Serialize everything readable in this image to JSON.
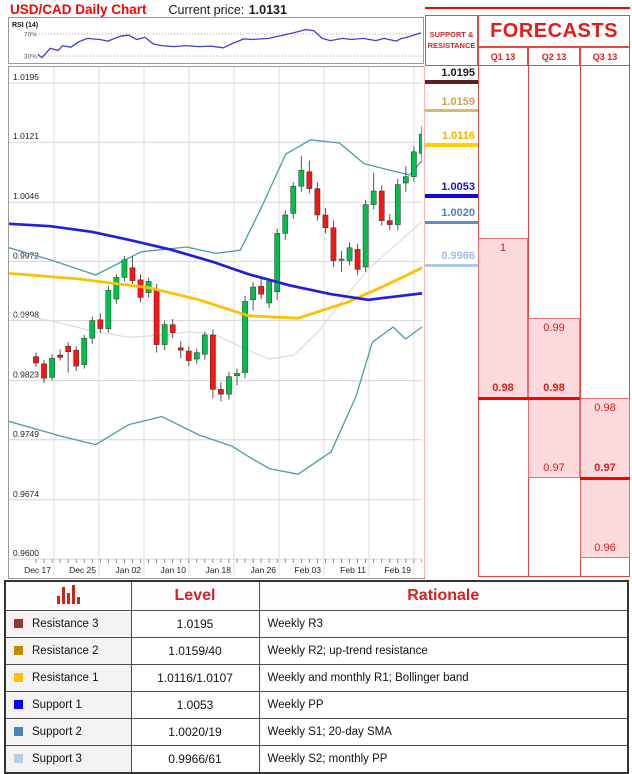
{
  "header": {
    "title": "USD/CAD Daily Chart",
    "current_price_label": "Current price:",
    "current_price_value": "1.0131"
  },
  "rsi": {
    "label": "RSI (14)",
    "upper_label": "70%",
    "lower_label": "30%"
  },
  "support_resistance": {
    "header": "SUPPORT & RESISTANCE",
    "levels": [
      {
        "value": "1.0195",
        "price": 1.0195,
        "text_color": "#1a1a1a",
        "line_color": "#5a2028",
        "line_h": 4
      },
      {
        "value": "1.0159",
        "price": 1.0159,
        "text_color": "#c9a55a",
        "line_color": "#d6ba74",
        "line_h": 3
      },
      {
        "value": "1.0116",
        "price": 1.0116,
        "text_color": "#f0b400",
        "line_color": "#ffd100",
        "line_h": 4
      },
      {
        "value": "1.0053",
        "price": 1.0053,
        "text_color": "#1414cc",
        "line_color": "#0d0dd6",
        "line_h": 4
      },
      {
        "value": "1.0020",
        "price": 1.002,
        "text_color": "#4f81bd",
        "line_color": "#5b8fc9",
        "line_h": 3
      },
      {
        "value": "0.9966",
        "price": 0.9966,
        "text_color": "#a3c0dd",
        "line_color": "#afc9e3",
        "line_h": 3
      }
    ]
  },
  "forecasts": {
    "title": "FORECASTS",
    "columns": [
      {
        "label": "Q1 13",
        "range": {
          "high": 1.0,
          "low": 0.98
        },
        "point": 0.98,
        "annotations": [
          {
            "text": "1",
            "price": 1.0,
            "below": true,
            "bold": false
          },
          {
            "text": "0.98",
            "price": 0.98,
            "below": false,
            "bold": true
          }
        ]
      },
      {
        "label": "Q2 13",
        "range": {
          "high": 0.99,
          "low": 0.97
        },
        "point": 0.98,
        "annotations": [
          {
            "text": "0.99",
            "price": 0.99,
            "below": true,
            "bold": false
          },
          {
            "text": "0.98",
            "price": 0.98,
            "below": false,
            "bold": true
          },
          {
            "text": "0.97",
            "price": 0.97,
            "below": false,
            "bold": false
          }
        ]
      },
      {
        "label": "Q3 13",
        "range": {
          "high": 0.98,
          "low": 0.96
        },
        "point": 0.97,
        "annotations": [
          {
            "text": "0.98",
            "price": 0.98,
            "below": true,
            "bold": false
          },
          {
            "text": "0.97",
            "price": 0.97,
            "below": false,
            "bold": true
          },
          {
            "text": "0.96",
            "price": 0.96,
            "below": false,
            "bold": false
          }
        ]
      }
    ]
  },
  "chart_data": {
    "type": "candlestick",
    "title": "USD/CAD Daily Chart",
    "current_price": 1.0131,
    "ylim": [
      0.9585,
      1.0215
    ],
    "grid": true,
    "y_ticks": [
      "1.0195",
      "1.0121",
      "1.0046",
      "0.9972",
      "0.9898",
      "0.9823",
      "0.9749",
      "0.9674",
      "0.9600"
    ],
    "x_ticks": [
      "Dec 17",
      "Dec 25",
      "Jan 02",
      "Jan 10",
      "Jan 18",
      "Jan 26",
      "Feb 03",
      "Feb 11",
      "Feb 19"
    ],
    "up_color": "#00bf4a",
    "down_color": "#fb1414",
    "candles_ohlc": [
      [
        0.9853,
        0.9858,
        0.984,
        0.9845
      ],
      [
        0.9844,
        0.9849,
        0.982,
        0.9826
      ],
      [
        0.9827,
        0.9856,
        0.9823,
        0.9851
      ],
      [
        0.9855,
        0.9862,
        0.9848,
        0.9852
      ],
      [
        0.9866,
        0.9871,
        0.9833,
        0.9859
      ],
      [
        0.9861,
        0.9866,
        0.9835,
        0.9841
      ],
      [
        0.9843,
        0.988,
        0.9838,
        0.9876
      ],
      [
        0.9876,
        0.9903,
        0.9869,
        0.9898
      ],
      [
        0.9899,
        0.9907,
        0.9883,
        0.9888
      ],
      [
        0.9888,
        0.9941,
        0.9883,
        0.9936
      ],
      [
        0.9925,
        0.9956,
        0.9919,
        0.9952
      ],
      [
        0.9952,
        0.9979,
        0.9947,
        0.9974
      ],
      [
        0.9964,
        0.9978,
        0.9944,
        0.9948
      ],
      [
        0.9949,
        0.9956,
        0.9921,
        0.9927
      ],
      [
        0.9933,
        0.9951,
        0.9927,
        0.9947
      ],
      [
        0.9937,
        0.9944,
        0.9858,
        0.9868
      ],
      [
        0.9868,
        0.9898,
        0.9861,
        0.9893
      ],
      [
        0.9893,
        0.99,
        0.9876,
        0.9883
      ],
      [
        0.9864,
        0.9872,
        0.9851,
        0.9861
      ],
      [
        0.986,
        0.9866,
        0.9841,
        0.9848
      ],
      [
        0.985,
        0.9863,
        0.9844,
        0.9858
      ],
      [
        0.9856,
        0.9884,
        0.9849,
        0.988
      ],
      [
        0.988,
        0.9887,
        0.9801,
        0.9812
      ],
      [
        0.9812,
        0.9821,
        0.9797,
        0.9806
      ],
      [
        0.9806,
        0.9834,
        0.9799,
        0.9828
      ],
      [
        0.9829,
        0.9838,
        0.9817,
        0.9832
      ],
      [
        0.9833,
        0.9929,
        0.9826,
        0.9922
      ],
      [
        0.9924,
        0.9946,
        0.9911,
        0.994
      ],
      [
        0.9941,
        0.9951,
        0.9925,
        0.9931
      ],
      [
        0.992,
        0.9951,
        0.9914,
        0.9947
      ],
      [
        0.9934,
        1.0013,
        0.9924,
        1.0007
      ],
      [
        1.0007,
        1.0036,
        0.9999,
        1.003
      ],
      [
        1.0032,
        1.0071,
        1.0025,
        1.0066
      ],
      [
        1.0066,
        1.0104,
        1.0059,
        1.0086
      ],
      [
        1.0084,
        1.0098,
        1.0057,
        1.0063
      ],
      [
        1.0063,
        1.0071,
        1.0023,
        1.003
      ],
      [
        1.003,
        1.0039,
        1.0007,
        1.0014
      ],
      [
        1.0014,
        1.0023,
        0.9965,
        0.9973
      ],
      [
        0.9974,
        0.9985,
        0.9959,
        0.9975
      ],
      [
        0.9973,
        0.9996,
        0.9967,
        0.9989
      ],
      [
        0.9987,
        0.9994,
        0.9955,
        0.9962
      ],
      [
        0.9965,
        1.0049,
        0.9959,
        1.0043
      ],
      [
        1.0043,
        1.0083,
        1.0037,
        1.006
      ],
      [
        1.006,
        1.0067,
        1.0017,
        1.0023
      ],
      [
        1.0023,
        1.0031,
        1.0011,
        1.0018
      ],
      [
        1.0018,
        1.0075,
        1.0011,
        1.0068
      ],
      [
        1.007,
        1.0091,
        1.0059,
        1.0078
      ],
      [
        1.0078,
        1.0116,
        1.0071,
        1.0109
      ],
      [
        1.0107,
        1.0141,
        1.0099,
        1.0131
      ]
    ],
    "overlays": {
      "sma_20": {
        "color": "#dcdcdc",
        "width": 1.2,
        "points": [
          [
            0,
            0.9908
          ],
          [
            0.1,
            0.9898
          ],
          [
            0.2,
            0.9885
          ],
          [
            0.29,
            0.9877
          ],
          [
            0.37,
            0.988
          ],
          [
            0.44,
            0.9884
          ],
          [
            0.5,
            0.988
          ],
          [
            0.57,
            0.9863
          ],
          [
            0.63,
            0.985
          ],
          [
            0.69,
            0.9855
          ],
          [
            0.75,
            0.9885
          ],
          [
            0.81,
            0.9925
          ],
          [
            0.87,
            0.9962
          ],
          [
            0.93,
            0.999
          ],
          [
            1,
            1.0022
          ]
        ]
      },
      "bollinger_upper": {
        "color": "#4d9ba8",
        "width": 1.3,
        "points": [
          [
            0,
            0.9989
          ],
          [
            0.1,
            0.9974
          ],
          [
            0.21,
            0.9955
          ],
          [
            0.32,
            0.9984
          ],
          [
            0.43,
            0.999
          ],
          [
            0.5,
            0.9982
          ],
          [
            0.56,
            0.9986
          ],
          [
            0.61,
            1.0038
          ],
          [
            0.67,
            1.0106
          ],
          [
            0.73,
            1.0124
          ],
          [
            0.8,
            1.012
          ],
          [
            0.86,
            1.0094
          ],
          [
            0.93,
            1.0085
          ],
          [
            0.97,
            1.008
          ],
          [
            1,
            1.0098
          ]
        ]
      },
      "bollinger_lower": {
        "color": "#4d9ba8",
        "width": 1.3,
        "points": [
          [
            0,
            0.9772
          ],
          [
            0.13,
            0.9753
          ],
          [
            0.21,
            0.9743
          ],
          [
            0.29,
            0.9768
          ],
          [
            0.37,
            0.9778
          ],
          [
            0.46,
            0.9755
          ],
          [
            0.54,
            0.9741
          ],
          [
            0.58,
            0.9728
          ],
          [
            0.63,
            0.9713
          ],
          [
            0.7,
            0.9706
          ],
          [
            0.78,
            0.9734
          ],
          [
            0.84,
            0.9803
          ],
          [
            0.88,
            0.9871
          ],
          [
            0.93,
            0.989
          ],
          [
            0.96,
            0.9875
          ],
          [
            1,
            0.989
          ]
        ]
      },
      "ma_yellow": {
        "color": "#ffc000",
        "width": 2.8,
        "points": [
          [
            0,
            0.9957
          ],
          [
            0.17,
            0.995
          ],
          [
            0.34,
            0.9939
          ],
          [
            0.46,
            0.9924
          ],
          [
            0.58,
            0.9904
          ],
          [
            0.7,
            0.9901
          ],
          [
            0.82,
            0.9921
          ],
          [
            0.92,
            0.9944
          ],
          [
            1,
            0.9964
          ]
        ]
      },
      "ma_blue": {
        "color": "#2020dd",
        "width": 2.7,
        "points": [
          [
            0,
            1.0019
          ],
          [
            0.1,
            1.0016
          ],
          [
            0.2,
            1.0009
          ],
          [
            0.29,
            0.9999
          ],
          [
            0.39,
            0.9987
          ],
          [
            0.49,
            0.9972
          ],
          [
            0.58,
            0.9956
          ],
          [
            0.68,
            0.9942
          ],
          [
            0.78,
            0.9931
          ],
          [
            0.87,
            0.9924
          ],
          [
            0.95,
            0.9929
          ],
          [
            1,
            0.9932
          ]
        ]
      }
    },
    "rsi": {
      "label": "RSI (14)",
      "upper_line": 70,
      "lower_line": 30,
      "color": "#4040d0",
      "points": [
        [
          0.07,
          33
        ],
        [
          0.08,
          27
        ],
        [
          0.1,
          44
        ],
        [
          0.12,
          40
        ],
        [
          0.13,
          49
        ],
        [
          0.15,
          46
        ],
        [
          0.17,
          56
        ],
        [
          0.19,
          62
        ],
        [
          0.22,
          60
        ],
        [
          0.24,
          57
        ],
        [
          0.27,
          66
        ],
        [
          0.29,
          68
        ],
        [
          0.31,
          60
        ],
        [
          0.33,
          64
        ],
        [
          0.35,
          52
        ],
        [
          0.37,
          49
        ],
        [
          0.4,
          47
        ],
        [
          0.43,
          49
        ],
        [
          0.46,
          47
        ],
        [
          0.49,
          48
        ],
        [
          0.52,
          45
        ],
        [
          0.54,
          52
        ],
        [
          0.57,
          61
        ],
        [
          0.59,
          60
        ],
        [
          0.63,
          62
        ],
        [
          0.66,
          67
        ],
        [
          0.69,
          72
        ],
        [
          0.72,
          78
        ],
        [
          0.74,
          76
        ],
        [
          0.76,
          62
        ],
        [
          0.78,
          58
        ],
        [
          0.81,
          62
        ],
        [
          0.83,
          60
        ],
        [
          0.86,
          62
        ],
        [
          0.89,
          58
        ],
        [
          0.91,
          62
        ],
        [
          0.94,
          57
        ],
        [
          0.95,
          61
        ],
        [
          0.97,
          65
        ],
        [
          1.0,
          72
        ]
      ]
    }
  },
  "table": {
    "headers": {
      "level": "Level",
      "rationale": "Rationale"
    },
    "rows": [
      {
        "marker_color": "#963634",
        "name": "Resistance 3",
        "level": "1.0195",
        "rationale": "Weekly R3"
      },
      {
        "marker_color": "#c08a00",
        "name": "Resistance 2",
        "level": "1.0159/40",
        "rationale": "Weekly R2; up-trend resistance"
      },
      {
        "marker_color": "#ffc000",
        "name": "Resistance 1",
        "level": "1.0116/1.0107",
        "rationale": "Weekly and monthly R1; Bollinger band"
      },
      {
        "marker_color": "#0000ff",
        "name": "Support 1",
        "level": "1.0053",
        "rationale": "Weekly PP"
      },
      {
        "marker_color": "#4f81bd",
        "name": "Support 2",
        "level": "1.0020/19",
        "rationale": "Weekly S1; 20-day SMA"
      },
      {
        "marker_color": "#b8cce4",
        "name": "Support 3",
        "level": "0.9966/61",
        "rationale": "Weekly S2; monthly PP"
      }
    ]
  }
}
